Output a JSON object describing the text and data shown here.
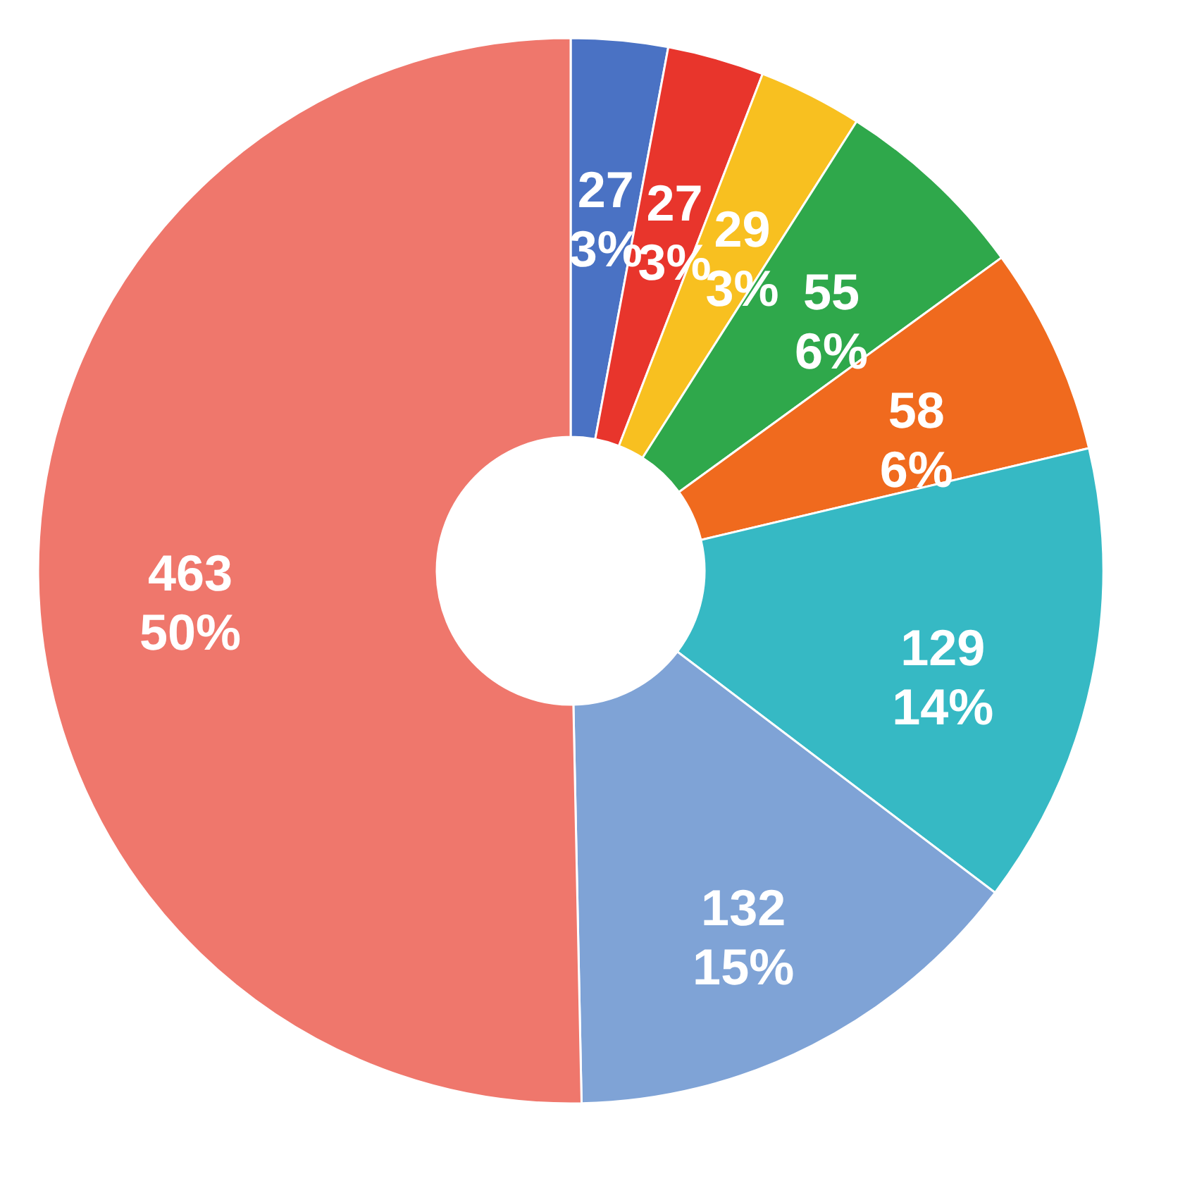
{
  "chart_data": {
    "type": "donut",
    "categories": [
      null,
      null,
      null,
      null,
      null,
      null,
      null,
      null
    ],
    "values": [
      27,
      27,
      29,
      55,
      58,
      129,
      132,
      463
    ],
    "colors": [
      "#4a72c4",
      "#e8352c",
      "#f8c020",
      "#2fa84b",
      "#f06a1e",
      "#36b9c4",
      "#7fa3d6",
      "#ef776c"
    ],
    "value_labels": [
      "27\n3%",
      "27\n3%",
      "29\n3%",
      "55\n6%",
      "58\n6%",
      "129\n14%",
      "132\n15%",
      "463\n50%"
    ],
    "legend": false
  }
}
